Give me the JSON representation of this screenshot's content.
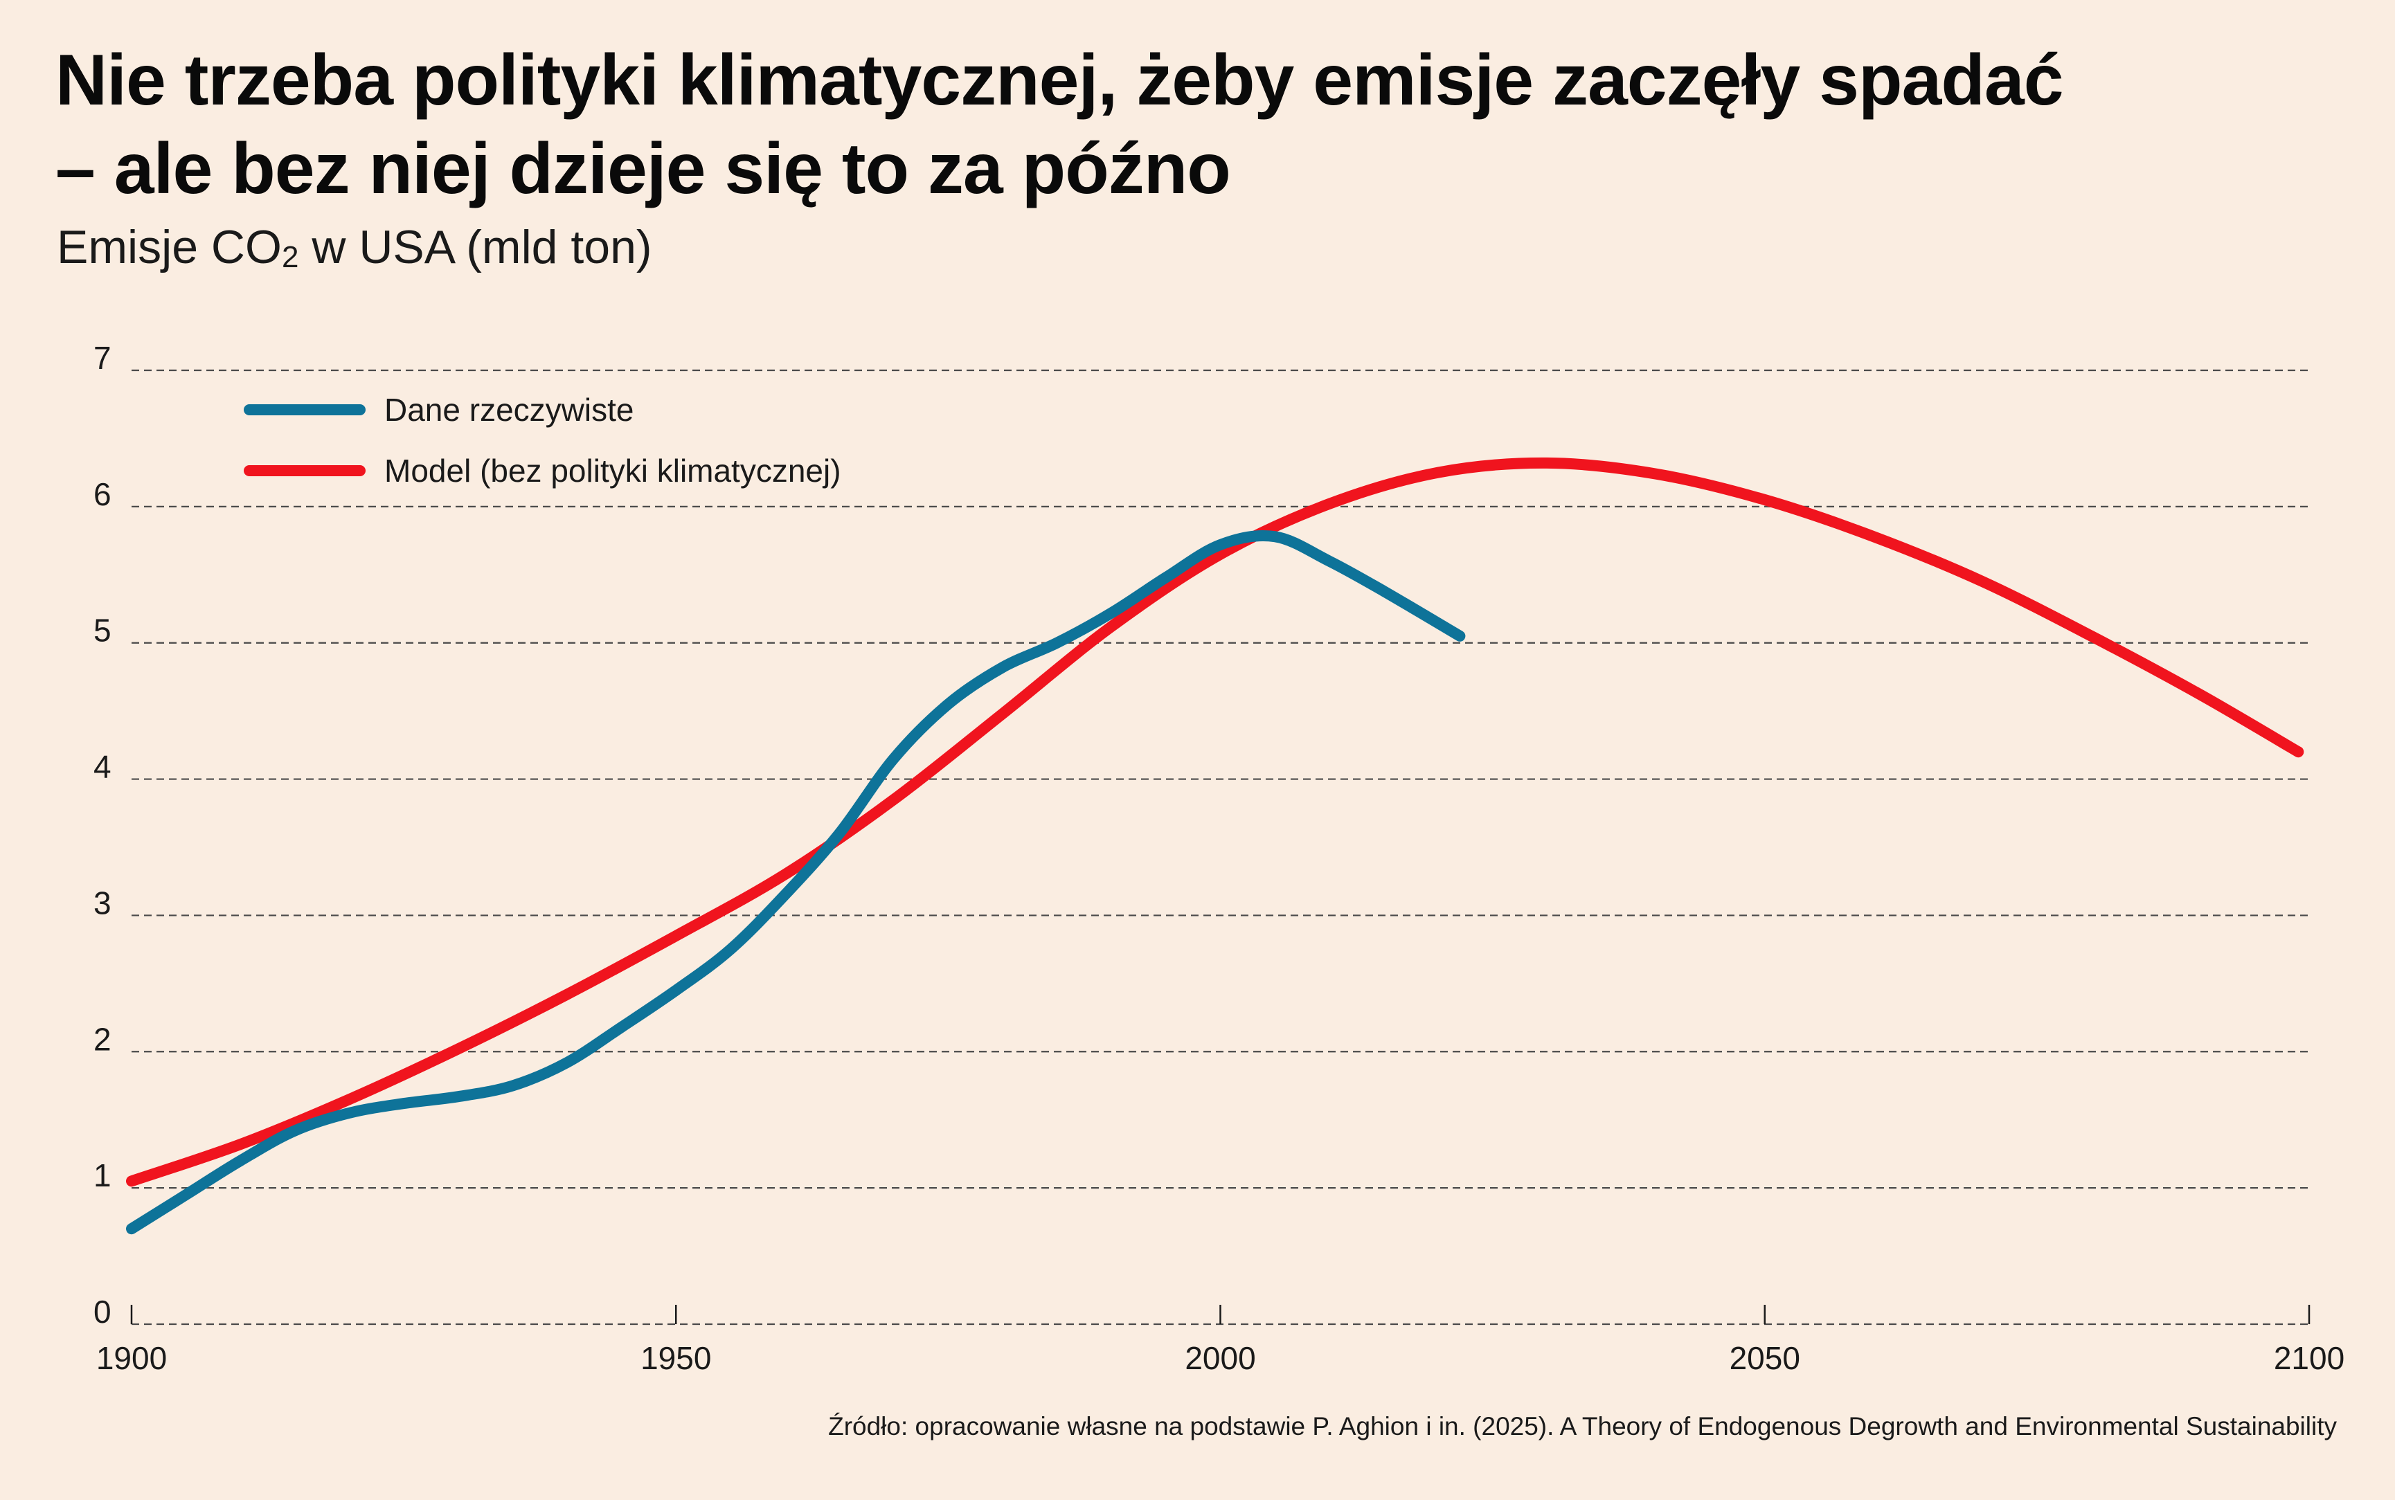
{
  "title_line1": "Nie trzeba polityki klimatycznej, żeby emisje zaczęły spadać",
  "title_line2": "– ale bez niej dzieje się to za późno",
  "subtitle_pre": "Emisje CO",
  "subtitle_sub": "2",
  "subtitle_post": " w USA (mld ton)",
  "source": "Źródło: opracowanie własne na podstawie P. Aghion i in. (2025). A Theory of Endogenous Degrowth and Environmental Sustainability",
  "chart_data": {
    "type": "line",
    "title": "Nie trzeba polityki klimatycznej, żeby emisje zaczęły spadać – ale bez niej dzieje się to za późno",
    "ylabel": "Emisje CO2 w USA (mld ton)",
    "xlabel": "",
    "xlim": [
      1900,
      2100
    ],
    "ylim": [
      0,
      7
    ],
    "x_ticks": [
      1900,
      1950,
      2000,
      2050,
      2100
    ],
    "y_ticks": [
      0,
      1,
      2,
      3,
      4,
      5,
      6,
      7
    ],
    "grid": "horizontal dashed",
    "legend_position": "top-left",
    "series": [
      {
        "name": "Dane rzeczywiste",
        "color": "#0e7399",
        "x": [
          1900,
          1905,
          1910,
          1915,
          1920,
          1925,
          1930,
          1935,
          1940,
          1945,
          1950,
          1955,
          1960,
          1965,
          1970,
          1975,
          1980,
          1985,
          1990,
          1995,
          2000,
          2005,
          2010,
          2015,
          2022
        ],
        "y": [
          0.7,
          0.95,
          1.2,
          1.42,
          1.55,
          1.62,
          1.67,
          1.75,
          1.92,
          2.18,
          2.45,
          2.75,
          3.15,
          3.6,
          4.15,
          4.55,
          4.82,
          5.0,
          5.22,
          5.48,
          5.72,
          5.78,
          5.6,
          5.38,
          5.05
        ]
      },
      {
        "name": "Model (bez polityki klimatycznej)",
        "color": "#f0141e",
        "x": [
          1900,
          1910,
          1920,
          1930,
          1940,
          1950,
          1960,
          1970,
          1980,
          1990,
          2000,
          2010,
          2020,
          2030,
          2040,
          2050,
          2060,
          2070,
          2080,
          2090,
          2099
        ],
        "y": [
          1.05,
          1.32,
          1.65,
          2.02,
          2.42,
          2.85,
          3.3,
          3.85,
          4.48,
          5.12,
          5.65,
          6.02,
          6.25,
          6.32,
          6.24,
          6.05,
          5.78,
          5.45,
          5.05,
          4.62,
          4.2
        ]
      }
    ]
  }
}
